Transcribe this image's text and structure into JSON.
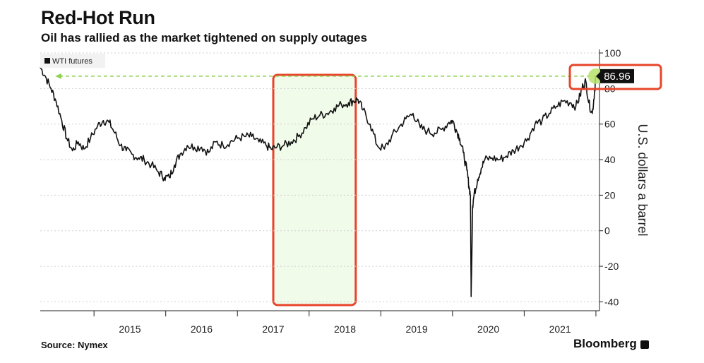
{
  "header": {
    "title": "Red-Hot Run",
    "subtitle": "Oil has rallied as the market tightened on supply outages"
  },
  "footer": {
    "source": "Source: Nymex",
    "brand": "Bloomberg"
  },
  "colors": {
    "line": "#111111",
    "reference_line": "#8fd14f",
    "marker": "#b6e36a",
    "highlight_box": "#e8442a",
    "highlight_fill": "#f1fbea",
    "value_label_bg": "#111111"
  },
  "chart_data": {
    "type": "line",
    "title": "Red-Hot Run",
    "subtitle": "Oil has rallied as the market tightened on supply outages",
    "ylabel": "U.S. dollars a barrel",
    "xlabel": "",
    "ylim": [
      -45,
      102
    ],
    "yticks": [
      100,
      80,
      60,
      40,
      20,
      0,
      -20,
      -40
    ],
    "xticks": [
      "2015",
      "2016",
      "2017",
      "2018",
      "2019",
      "2020",
      "2021"
    ],
    "xlim": [
      2014.25,
      2022.05
    ],
    "grid": true,
    "legend_position": "top-left",
    "last_value_label": "86.96",
    "reference_level": 86.96,
    "highlighted_period": [
      2017.5,
      2018.65
    ],
    "series": [
      {
        "name": "WTI futures",
        "x": [
          2014.25,
          2014.32,
          2014.4,
          2014.47,
          2014.55,
          2014.62,
          2014.7,
          2014.78,
          2014.86,
          2014.95,
          2015.05,
          2015.13,
          2015.21,
          2015.29,
          2015.37,
          2015.45,
          2015.53,
          2015.62,
          2015.7,
          2015.8,
          2015.9,
          2015.98,
          2016.05,
          2016.12,
          2016.2,
          2016.3,
          2016.4,
          2016.5,
          2016.6,
          2016.7,
          2016.8,
          2016.9,
          2017.0,
          2017.1,
          2017.2,
          2017.3,
          2017.4,
          2017.47,
          2017.55,
          2017.65,
          2017.75,
          2017.85,
          2017.95,
          2018.05,
          2018.15,
          2018.25,
          2018.35,
          2018.45,
          2018.55,
          2018.62,
          2018.68,
          2018.75,
          2018.85,
          2018.95,
          2019.05,
          2019.15,
          2019.25,
          2019.35,
          2019.45,
          2019.55,
          2019.65,
          2019.75,
          2019.85,
          2019.95,
          2020.0,
          2020.05,
          2020.1,
          2020.15,
          2020.2,
          2020.23,
          2020.25,
          2020.26,
          2020.28,
          2020.3,
          2020.35,
          2020.4,
          2020.45,
          2020.55,
          2020.65,
          2020.75,
          2020.85,
          2020.95,
          2021.05,
          2021.15,
          2021.25,
          2021.35,
          2021.45,
          2021.55,
          2021.65,
          2021.72,
          2021.78,
          2021.82,
          2021.86,
          2021.9,
          2021.95,
          2021.98,
          2022.0
        ],
        "values": [
          92,
          87,
          80,
          73,
          62,
          52,
          45,
          50,
          46,
          52,
          59,
          62,
          61,
          55,
          48,
          45,
          43,
          41,
          40,
          37,
          33,
          30,
          30,
          37,
          43,
          48,
          47,
          47,
          44,
          50,
          48,
          50,
          52,
          53,
          53,
          50,
          48,
          46,
          47,
          48,
          50,
          53,
          58,
          63,
          65,
          66,
          69,
          71,
          72,
          73,
          74,
          68,
          60,
          48,
          46,
          53,
          58,
          63,
          66,
          58,
          56,
          55,
          57,
          61,
          62,
          57,
          52,
          44,
          34,
          25,
          20,
          -37,
          14,
          20,
          29,
          35,
          40,
          41,
          40,
          42,
          45,
          48,
          52,
          60,
          62,
          66,
          70,
          73,
          72,
          70,
          76,
          82,
          84,
          72,
          66,
          78,
          86.96
        ]
      }
    ]
  },
  "legend": {
    "label": "WTI futures"
  }
}
